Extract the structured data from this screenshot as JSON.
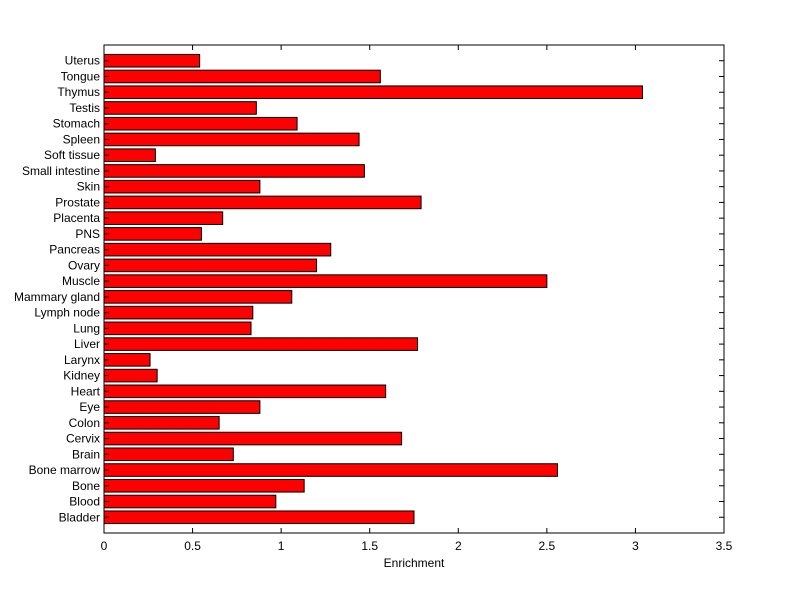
{
  "chart_data": {
    "type": "bar",
    "orientation": "horizontal",
    "title": "",
    "xlabel": "Enrichment",
    "ylabel": "",
    "xlim": [
      0,
      3.5
    ],
    "x_ticks": [
      "0",
      "0.5",
      "1",
      "1.5",
      "2",
      "2.5",
      "3",
      "3.5"
    ],
    "grid": false,
    "bar_color": "#ff0000",
    "categories": [
      "Bladder",
      "Blood",
      "Bone",
      "Bone marrow",
      "Brain",
      "Cervix",
      "Colon",
      "Eye",
      "Heart",
      "Kidney",
      "Larynx",
      "Liver",
      "Lung",
      "Lymph node",
      "Mammary gland",
      "Muscle",
      "Ovary",
      "Pancreas",
      "PNS",
      "Placenta",
      "Prostate",
      "Skin",
      "Small intestine",
      "Soft tissue",
      "Spleen",
      "Stomach",
      "Testis",
      "Thymus",
      "Tongue",
      "Uterus"
    ],
    "values": [
      1.75,
      0.97,
      1.13,
      2.56,
      0.73,
      1.68,
      0.65,
      0.88,
      1.59,
      0.3,
      0.26,
      1.77,
      0.83,
      0.84,
      1.06,
      2.5,
      1.2,
      1.28,
      0.55,
      0.67,
      1.79,
      0.88,
      1.47,
      0.29,
      1.44,
      1.09,
      0.86,
      3.04,
      1.56,
      0.54
    ]
  }
}
